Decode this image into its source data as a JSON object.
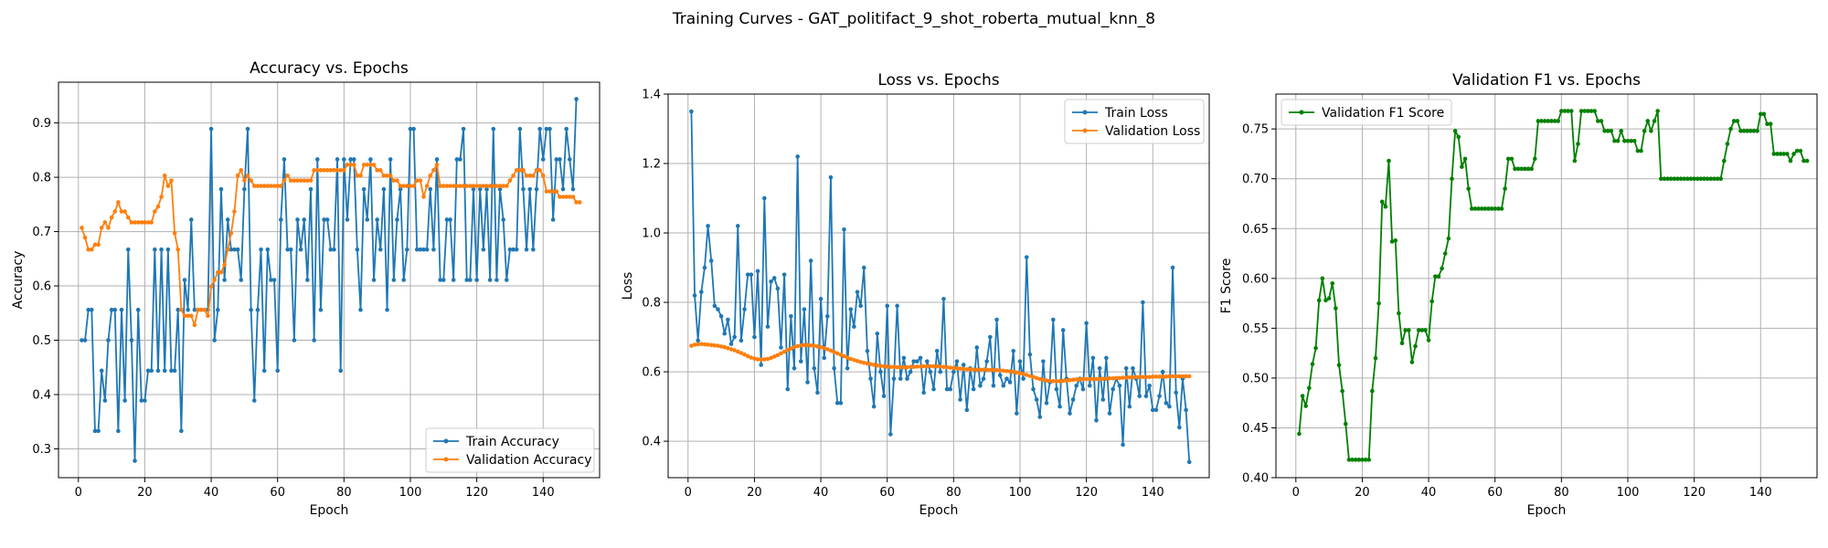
{
  "figure": {
    "suptitle": "Training Curves - GAT_politifact_9_shot_roberta_mutual_knn_8"
  },
  "colors": {
    "train": "#1f77b4",
    "validation": "#ff7f0e",
    "f1": "#008000",
    "grid": "#b0b0b0"
  },
  "chart_data": [
    {
      "type": "line",
      "title": "Accuracy vs. Epochs",
      "xlabel": "Epoch",
      "ylabel": "Accuracy",
      "xlim": [
        -6,
        157
      ],
      "ylim": [
        0.247,
        0.975
      ],
      "xticks": [
        0,
        20,
        40,
        60,
        80,
        100,
        120,
        140
      ],
      "yticks": [
        0.3,
        0.4,
        0.5,
        0.6,
        0.7,
        0.8,
        0.9
      ],
      "ytick_labels": [
        "0.3",
        "0.4",
        "0.5",
        "0.6",
        "0.7",
        "0.8",
        "0.9"
      ],
      "grid": true,
      "legend_position": "lower-right",
      "x_start": 1,
      "series": [
        {
          "name": "Train Accuracy",
          "color": "#1f77b4",
          "values": [
            0.5,
            0.5,
            0.556,
            0.556,
            0.333,
            0.333,
            0.444,
            0.389,
            0.5,
            0.556,
            0.556,
            0.333,
            0.556,
            0.389,
            0.667,
            0.5,
            0.278,
            0.556,
            0.389,
            0.389,
            0.444,
            0.444,
            0.667,
            0.444,
            0.667,
            0.444,
            0.667,
            0.444,
            0.444,
            0.556,
            0.333,
            0.611,
            0.556,
            0.722,
            0.556,
            0.556,
            0.556,
            0.556,
            0.556,
            0.889,
            0.5,
            0.556,
            0.778,
            0.611,
            0.722,
            0.667,
            0.667,
            0.667,
            0.611,
            0.778,
            0.889,
            0.556,
            0.389,
            0.556,
            0.667,
            0.444,
            0.667,
            0.611,
            0.611,
            0.444,
            0.722,
            0.833,
            0.667,
            0.667,
            0.5,
            0.722,
            0.667,
            0.722,
            0.611,
            0.778,
            0.5,
            0.833,
            0.556,
            0.722,
            0.722,
            0.667,
            0.667,
            0.833,
            0.444,
            0.833,
            0.722,
            0.833,
            0.833,
            0.667,
            0.556,
            0.778,
            0.722,
            0.833,
            0.611,
            0.722,
            0.667,
            0.778,
            0.556,
            0.833,
            0.611,
            0.722,
            0.778,
            0.611,
            0.667,
            0.889,
            0.889,
            0.667,
            0.667,
            0.667,
            0.667,
            0.778,
            0.667,
            0.833,
            0.611,
            0.611,
            0.722,
            0.722,
            0.611,
            0.833,
            0.833,
            0.889,
            0.611,
            0.611,
            0.778,
            0.611,
            0.778,
            0.667,
            0.778,
            0.611,
            0.889,
            0.611,
            0.778,
            0.722,
            0.611,
            0.667,
            0.667,
            0.667,
            0.889,
            0.778,
            0.667,
            0.778,
            0.667,
            0.778,
            0.889,
            0.833,
            0.889,
            0.889,
            0.722,
            0.833,
            0.833,
            0.778,
            0.889,
            0.833,
            0.778,
            0.944
          ]
        },
        {
          "name": "Validation Accuracy",
          "color": "#ff7f0e",
          "values": [
            0.707,
            0.689,
            0.667,
            0.667,
            0.676,
            0.676,
            0.707,
            0.717,
            0.707,
            0.726,
            0.737,
            0.754,
            0.737,
            0.737,
            0.726,
            0.717,
            0.717,
            0.717,
            0.717,
            0.717,
            0.717,
            0.717,
            0.737,
            0.746,
            0.764,
            0.803,
            0.784,
            0.794,
            0.697,
            0.667,
            0.556,
            0.545,
            0.545,
            0.545,
            0.528,
            0.556,
            0.556,
            0.556,
            0.545,
            0.599,
            0.611,
            0.625,
            0.625,
            0.639,
            0.667,
            0.697,
            0.737,
            0.803,
            0.813,
            0.794,
            0.803,
            0.794,
            0.784,
            0.784,
            0.784,
            0.784,
            0.784,
            0.784,
            0.784,
            0.784,
            0.784,
            0.794,
            0.803,
            0.794,
            0.794,
            0.794,
            0.794,
            0.794,
            0.794,
            0.794,
            0.813,
            0.813,
            0.813,
            0.813,
            0.813,
            0.813,
            0.813,
            0.813,
            0.813,
            0.813,
            0.823,
            0.823,
            0.823,
            0.803,
            0.803,
            0.823,
            0.823,
            0.823,
            0.823,
            0.813,
            0.813,
            0.803,
            0.803,
            0.803,
            0.794,
            0.794,
            0.784,
            0.784,
            0.784,
            0.784,
            0.784,
            0.794,
            0.794,
            0.764,
            0.784,
            0.803,
            0.813,
            0.823,
            0.784,
            0.784,
            0.784,
            0.784,
            0.784,
            0.784,
            0.784,
            0.784,
            0.784,
            0.784,
            0.784,
            0.784,
            0.784,
            0.784,
            0.784,
            0.784,
            0.784,
            0.784,
            0.784,
            0.784,
            0.784,
            0.794,
            0.803,
            0.813,
            0.813,
            0.813,
            0.803,
            0.803,
            0.803,
            0.813,
            0.813,
            0.803,
            0.774,
            0.774,
            0.774,
            0.774,
            0.764,
            0.764,
            0.764,
            0.764,
            0.764,
            0.754,
            0.754
          ]
        }
      ]
    },
    {
      "type": "line",
      "title": "Loss vs. Epochs",
      "xlabel": "Epoch",
      "ylabel": "Loss",
      "xlim": [
        -6,
        157
      ],
      "ylim": [
        0.295,
        1.4
      ],
      "xticks": [
        0,
        20,
        40,
        60,
        80,
        100,
        120,
        140
      ],
      "yticks": [
        0.4,
        0.6,
        0.8,
        1.0,
        1.2,
        1.4
      ],
      "ytick_labels": [
        "0.4",
        "0.6",
        "0.8",
        "1.0",
        "1.2",
        "1.4"
      ],
      "grid": true,
      "legend_position": "top-right",
      "x_start": 1,
      "series": [
        {
          "name": "Train Loss",
          "color": "#1f77b4",
          "values": [
            1.35,
            0.82,
            0.69,
            0.83,
            0.9,
            1.02,
            0.92,
            0.79,
            0.78,
            0.76,
            0.71,
            0.75,
            0.68,
            0.7,
            1.02,
            0.69,
            0.78,
            0.88,
            0.88,
            0.7,
            0.89,
            0.62,
            1.1,
            0.73,
            0.86,
            0.87,
            0.84,
            0.67,
            0.88,
            0.55,
            0.76,
            0.61,
            1.22,
            0.63,
            0.78,
            0.57,
            0.92,
            0.61,
            0.54,
            0.81,
            0.64,
            0.76,
            1.16,
            0.61,
            0.51,
            0.51,
            1.01,
            0.61,
            0.78,
            0.73,
            0.83,
            0.79,
            0.9,
            0.66,
            0.58,
            0.5,
            0.71,
            0.6,
            0.53,
            0.79,
            0.42,
            0.58,
            0.79,
            0.58,
            0.64,
            0.58,
            0.6,
            0.63,
            0.63,
            0.64,
            0.54,
            0.63,
            0.6,
            0.55,
            0.66,
            0.6,
            0.81,
            0.55,
            0.55,
            0.6,
            0.63,
            0.52,
            0.62,
            0.49,
            0.61,
            0.55,
            0.67,
            0.56,
            0.58,
            0.63,
            0.7,
            0.56,
            0.75,
            0.59,
            0.56,
            0.58,
            0.57,
            0.66,
            0.48,
            0.63,
            0.58,
            0.93,
            0.65,
            0.55,
            0.52,
            0.47,
            0.63,
            0.51,
            0.57,
            0.75,
            0.55,
            0.5,
            0.72,
            0.58,
            0.48,
            0.52,
            0.56,
            0.58,
            0.55,
            0.74,
            0.56,
            0.64,
            0.46,
            0.61,
            0.52,
            0.64,
            0.48,
            0.55,
            0.58,
            0.56,
            0.39,
            0.61,
            0.5,
            0.61,
            0.58,
            0.53,
            0.8,
            0.53,
            0.56,
            0.49,
            0.49,
            0.53,
            0.6,
            0.51,
            0.5,
            0.9,
            0.54,
            0.44,
            0.58,
            0.49,
            0.34
          ]
        },
        {
          "name": "Validation Loss",
          "color": "#ff7f0e",
          "values": [
            0.675,
            0.678,
            0.679,
            0.68,
            0.679,
            0.678,
            0.677,
            0.676,
            0.675,
            0.673,
            0.671,
            0.668,
            0.665,
            0.662,
            0.658,
            0.654,
            0.65,
            0.645,
            0.641,
            0.638,
            0.636,
            0.635,
            0.636,
            0.637,
            0.64,
            0.644,
            0.648,
            0.653,
            0.658,
            0.663,
            0.667,
            0.671,
            0.674,
            0.676,
            0.677,
            0.677,
            0.676,
            0.675,
            0.673,
            0.671,
            0.668,
            0.665,
            0.661,
            0.657,
            0.653,
            0.649,
            0.645,
            0.641,
            0.637,
            0.634,
            0.631,
            0.628,
            0.626,
            0.624,
            0.622,
            0.62,
            0.618,
            0.617,
            0.616,
            0.615,
            0.614,
            0.614,
            0.613,
            0.613,
            0.613,
            0.613,
            0.614,
            0.614,
            0.615,
            0.615,
            0.616,
            0.616,
            0.616,
            0.616,
            0.616,
            0.615,
            0.614,
            0.613,
            0.612,
            0.611,
            0.61,
            0.609,
            0.608,
            0.607,
            0.607,
            0.606,
            0.606,
            0.606,
            0.606,
            0.606,
            0.605,
            0.605,
            0.605,
            0.604,
            0.603,
            0.602,
            0.601,
            0.6,
            0.598,
            0.596,
            0.594,
            0.591,
            0.588,
            0.585,
            0.582,
            0.579,
            0.577,
            0.575,
            0.574,
            0.573,
            0.573,
            0.573,
            0.574,
            0.575,
            0.576,
            0.577,
            0.578,
            0.578,
            0.579,
            0.579,
            0.579,
            0.579,
            0.579,
            0.579,
            0.58,
            0.58,
            0.581,
            0.581,
            0.582,
            0.582,
            0.583,
            0.583,
            0.584,
            0.584,
            0.585,
            0.585,
            0.585,
            0.585,
            0.585,
            0.586,
            0.586,
            0.586,
            0.586,
            0.586,
            0.587,
            0.587,
            0.587,
            0.587,
            0.587,
            0.587,
            0.587
          ]
        }
      ]
    },
    {
      "type": "line",
      "title": "Validation F1 vs. Epochs",
      "xlabel": "Epoch",
      "ylabel": "F1 Score",
      "xlim": [
        -6,
        157
      ],
      "ylim": [
        0.4,
        0.785
      ],
      "xticks": [
        0,
        20,
        40,
        60,
        80,
        100,
        120,
        140
      ],
      "yticks": [
        0.4,
        0.45,
        0.5,
        0.55,
        0.6,
        0.65,
        0.7,
        0.75
      ],
      "ytick_labels": [
        "0.40",
        "0.45",
        "0.50",
        "0.55",
        "0.60",
        "0.65",
        "0.70",
        "0.75"
      ],
      "grid": true,
      "legend_position": "top-left",
      "x_start": 1,
      "series": [
        {
          "name": "Validation F1 Score",
          "color": "#008000",
          "values": [
            0.444,
            0.482,
            0.472,
            0.49,
            0.514,
            0.53,
            0.578,
            0.6,
            0.578,
            0.58,
            0.595,
            0.57,
            0.513,
            0.487,
            0.454,
            0.418,
            0.418,
            0.418,
            0.418,
            0.418,
            0.418,
            0.418,
            0.487,
            0.52,
            0.575,
            0.677,
            0.672,
            0.718,
            0.637,
            0.638,
            0.565,
            0.535,
            0.548,
            0.548,
            0.516,
            0.532,
            0.548,
            0.548,
            0.548,
            0.538,
            0.577,
            0.602,
            0.602,
            0.61,
            0.625,
            0.64,
            0.7,
            0.748,
            0.742,
            0.712,
            0.72,
            0.69,
            0.67,
            0.67,
            0.67,
            0.67,
            0.67,
            0.67,
            0.67,
            0.67,
            0.67,
            0.67,
            0.69,
            0.72,
            0.72,
            0.71,
            0.71,
            0.71,
            0.71,
            0.71,
            0.71,
            0.72,
            0.758,
            0.758,
            0.758,
            0.758,
            0.758,
            0.758,
            0.758,
            0.768,
            0.768,
            0.768,
            0.768,
            0.718,
            0.735,
            0.768,
            0.768,
            0.768,
            0.768,
            0.768,
            0.758,
            0.758,
            0.748,
            0.748,
            0.748,
            0.738,
            0.738,
            0.748,
            0.738,
            0.738,
            0.738,
            0.738,
            0.728,
            0.728,
            0.748,
            0.758,
            0.748,
            0.758,
            0.768,
            0.7,
            0.7,
            0.7,
            0.7,
            0.7,
            0.7,
            0.7,
            0.7,
            0.7,
            0.7,
            0.7,
            0.7,
            0.7,
            0.7,
            0.7,
            0.7,
            0.7,
            0.7,
            0.7,
            0.718,
            0.735,
            0.75,
            0.758,
            0.758,
            0.748,
            0.748,
            0.748,
            0.748,
            0.748,
            0.748,
            0.765,
            0.765,
            0.755,
            0.755,
            0.725,
            0.725,
            0.725,
            0.725,
            0.725,
            0.718,
            0.725,
            0.728,
            0.728,
            0.718,
            0.718
          ]
        }
      ]
    }
  ]
}
